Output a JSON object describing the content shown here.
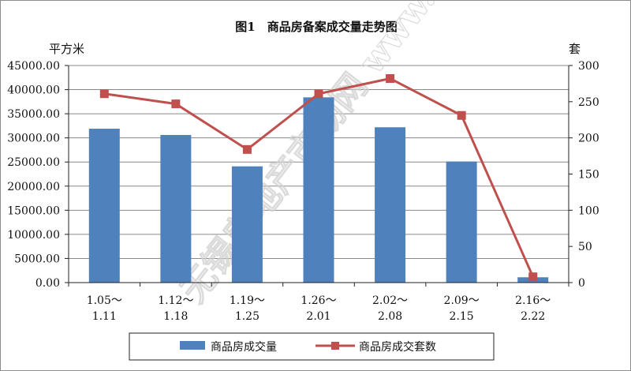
{
  "chart_data": {
    "type": "bar+line",
    "title": "图1　商品房备案成交量走势图",
    "y_left_unit": "平方米",
    "y_right_unit": "套",
    "y_left_ticks": [
      "45000.00",
      "40000.00",
      "35000.00",
      "30000.00",
      "25000.00",
      "20000.00",
      "15000.00",
      "10000.00",
      "5000.00",
      "0.00"
    ],
    "y_right_ticks": [
      "300",
      "250",
      "200",
      "150",
      "100",
      "50",
      "0"
    ],
    "y_left_lim": [
      0,
      45000
    ],
    "y_right_lim": [
      0,
      300
    ],
    "categories": [
      {
        "line1": "1.05～",
        "line2": "1.11"
      },
      {
        "line1": "1.12～",
        "line2": "1.18"
      },
      {
        "line1": "1.19～",
        "line2": "1.25"
      },
      {
        "line1": "1.26～",
        "line2": "2.01"
      },
      {
        "line1": "2.02～",
        "line2": "2.08"
      },
      {
        "line1": "2.09～",
        "line2": "2.15"
      },
      {
        "line1": "2.16～",
        "line2": "2.22"
      }
    ],
    "series": [
      {
        "name": "商品房成交量",
        "type": "bar",
        "axis": "left",
        "color": "#4f81bd",
        "values": [
          31900,
          30600,
          24100,
          38400,
          32200,
          25100,
          1100
        ]
      },
      {
        "name": "商品房成交套数",
        "type": "line",
        "axis": "right",
        "color": "#c0504d",
        "values": [
          261,
          247,
          184,
          261,
          282,
          231,
          8
        ]
      }
    ],
    "legend_position": "bottom",
    "grid": true,
    "watermark": "无锡房地产市场网 www.xhouse.com"
  }
}
